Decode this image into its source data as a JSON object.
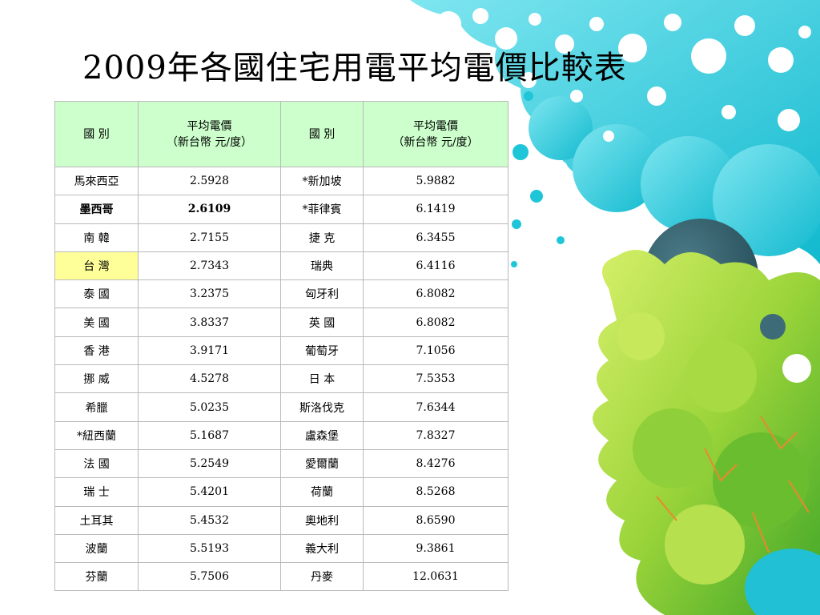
{
  "slide": {
    "title": "2009年各國住宅用電平均電價比較表"
  },
  "table": {
    "headers": {
      "country": "國 別",
      "price_line1": "平均電價",
      "price_line2": "（新台幣 元/度）"
    },
    "rows": [
      {
        "c1": "馬來西亞",
        "p1": "2.5928",
        "c2": "*新加坡",
        "p2": "5.9882"
      },
      {
        "c1": "墨西哥",
        "p1": "2.6109",
        "c2": "*菲律賓",
        "p2": "6.1419"
      },
      {
        "c1": "南 韓",
        "p1": "2.7155",
        "c2": "捷 克",
        "p2": "6.3455"
      },
      {
        "c1": "台 灣",
        "p1": "2.7343",
        "c2": "瑞典",
        "p2": "6.4116"
      },
      {
        "c1": "泰 國",
        "p1": "3.2375",
        "c2": "匈牙利",
        "p2": "6.8082"
      },
      {
        "c1": "美 國",
        "p1": "3.8337",
        "c2": "英 國",
        "p2": "6.8082"
      },
      {
        "c1": "香 港",
        "p1": "3.9171",
        "c2": "葡萄牙",
        "p2": "7.1056"
      },
      {
        "c1": "挪 威",
        "p1": "4.5278",
        "c2": "日 本",
        "p2": "7.5353"
      },
      {
        "c1": "希臘",
        "p1": "5.0235",
        "c2": "斯洛伐克",
        "p2": "7.6344"
      },
      {
        "c1": "*紐西蘭",
        "p1": "5.1687",
        "c2": "盧森堡",
        "p2": "7.8327"
      },
      {
        "c1": "法 國",
        "p1": "5.2549",
        "c2": "愛爾蘭",
        "p2": "8.4276"
      },
      {
        "c1": "瑞 士",
        "p1": "5.4201",
        "c2": "荷蘭",
        "p2": "8.5268"
      },
      {
        "c1": "土耳其",
        "p1": "5.4532",
        "c2": "奧地利",
        "p2": "8.6590"
      },
      {
        "c1": "波蘭",
        "p1": "5.5193",
        "c2": "義大利",
        "p2": "9.3861"
      },
      {
        "c1": "芬蘭",
        "p1": "5.7506",
        "c2": "丹麥",
        "p2": "12.0631"
      }
    ]
  },
  "colors": {
    "header_bg": "#ccffcc",
    "highlight_bg": "#ffff99",
    "cyan_decor": "#1fc6d8",
    "green_decor": "#8fd13a"
  }
}
